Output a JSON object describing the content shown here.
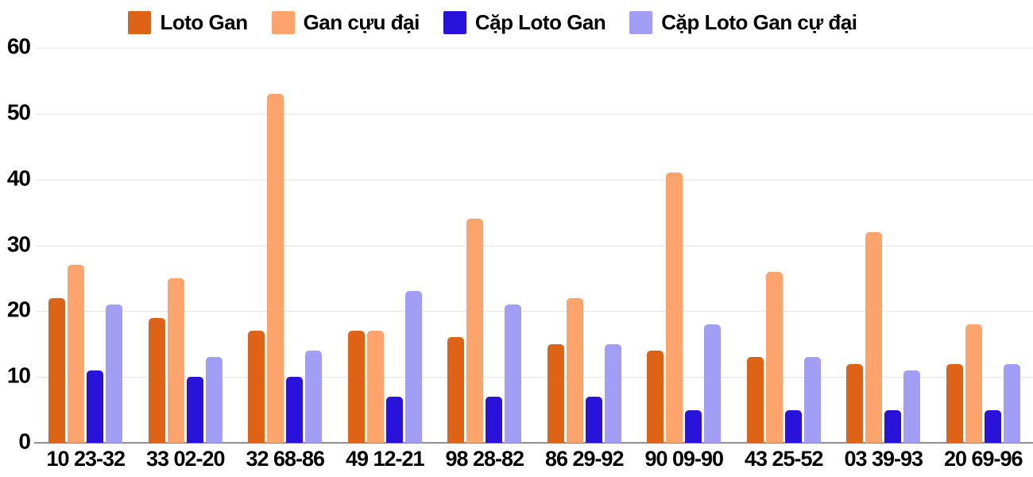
{
  "chart_data": {
    "type": "bar",
    "title": "",
    "xlabel": "",
    "ylabel": "",
    "categories": [
      "10 23-32",
      "33 02-20",
      "32 68-86",
      "49 12-21",
      "98 28-82",
      "86 29-92",
      "90 09-90",
      "43 25-52",
      "03 39-93",
      "20 69-96"
    ],
    "series": [
      {
        "name": "Loto Gan",
        "color": "#df6317",
        "values": [
          22,
          19,
          17,
          17,
          16,
          15,
          14,
          13,
          12,
          12
        ]
      },
      {
        "name": "Gan cựu đại",
        "color": "#fca46c",
        "values": [
          27,
          25,
          53,
          17,
          34,
          22,
          41,
          26,
          32,
          18
        ]
      },
      {
        "name": "Cặp Loto Gan",
        "color": "#2912d9",
        "values": [
          11,
          10,
          10,
          7,
          7,
          7,
          5,
          5,
          5,
          5
        ]
      },
      {
        "name": "Cặp Loto Gan cự đại",
        "color": "#a39ef5",
        "values": [
          21,
          13,
          14,
          23,
          21,
          15,
          18,
          13,
          11,
          12
        ]
      }
    ],
    "ylim": [
      0,
      60
    ],
    "yticks": [
      0,
      10,
      20,
      30,
      40,
      50,
      60
    ],
    "grid": "horizontal-only",
    "legend_position": "top-center",
    "colors": {
      "background": "#ffffff",
      "gridline": "#e4e4e4",
      "axis_line": "#8f8f94",
      "text": "#000000"
    }
  }
}
